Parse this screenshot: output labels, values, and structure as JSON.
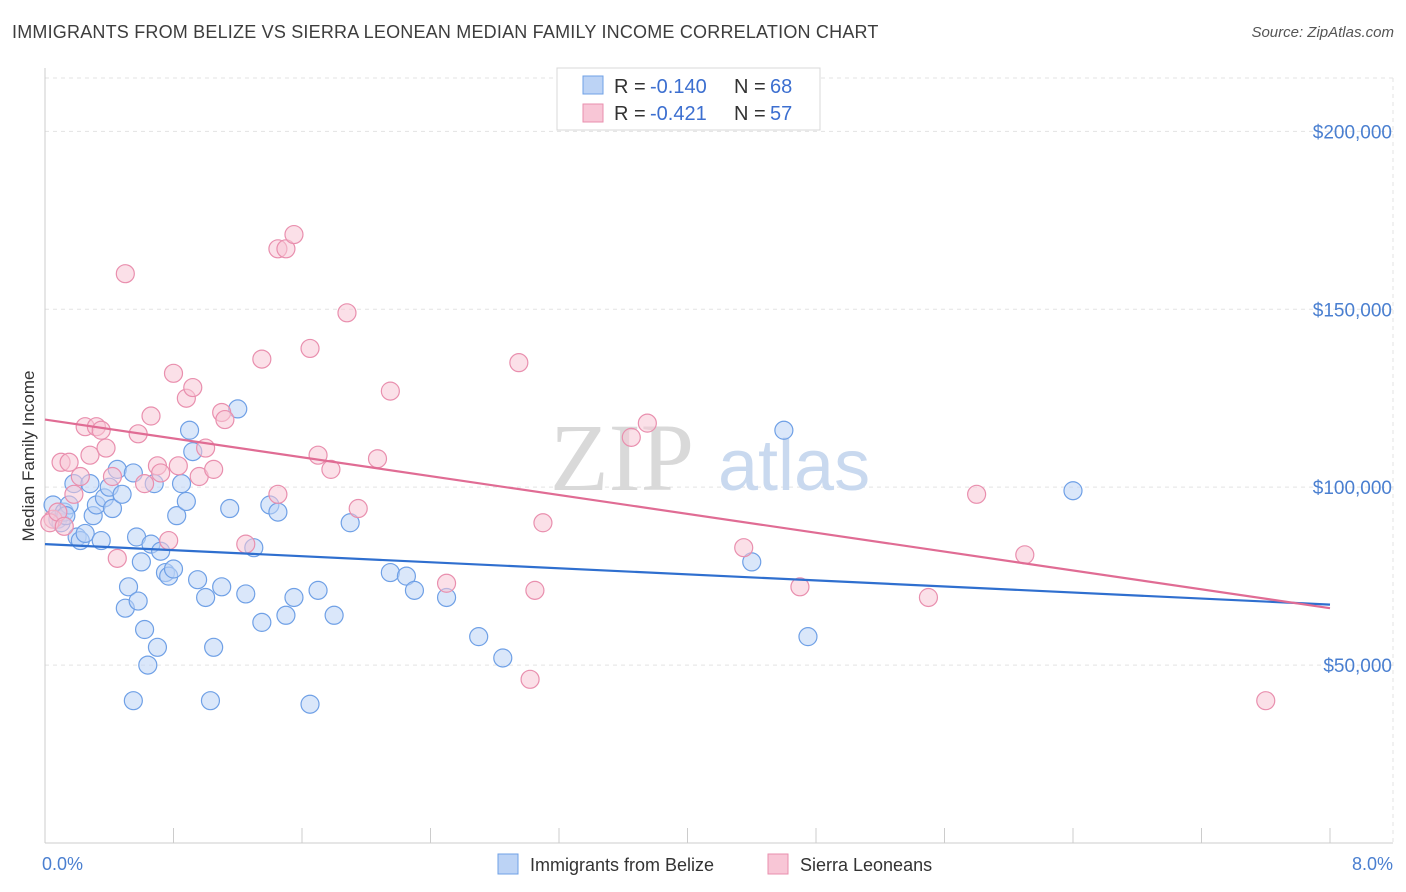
{
  "header": {
    "title": "IMMIGRANTS FROM BELIZE VS SIERRA LEONEAN MEDIAN FAMILY INCOME CORRELATION CHART",
    "source": "Source: ZipAtlas.com"
  },
  "watermark": {
    "zip": "ZIP",
    "atlas": "atlas"
  },
  "legend_top": {
    "r_label": "R =",
    "n_label": "N =",
    "rows": [
      {
        "r": "-0.140",
        "n": "68",
        "color": "#6fa0e6",
        "fill": "#bcd3f5"
      },
      {
        "r": "-0.421",
        "n": "57",
        "color": "#e98fae",
        "fill": "#f8c6d6"
      }
    ]
  },
  "legend_bottom": [
    {
      "label": "Immigrants from Belize",
      "color": "#6fa0e6",
      "fill": "#bcd3f5"
    },
    {
      "label": "Sierra Leoneans",
      "color": "#e98fae",
      "fill": "#f8c6d6"
    }
  ],
  "chart_data": {
    "type": "scatter",
    "title": "IMMIGRANTS FROM BELIZE VS SIERRA LEONEAN MEDIAN FAMILY INCOME CORRELATION CHART",
    "xlabel": "",
    "ylabel": "Median Family Income",
    "xlim": [
      0,
      8.0
    ],
    "ylim": [
      0,
      215000
    ],
    "x_tick_labels": [
      "0.0%",
      "8.0%"
    ],
    "y_ticks": [
      50000,
      100000,
      150000,
      200000
    ],
    "y_tick_labels": [
      "$50,000",
      "$100,000",
      "$150,000",
      "$200,000"
    ],
    "grid": true,
    "series": [
      {
        "name": "Immigrants from Belize",
        "color": "#6fa0e6",
        "fill": "#bcd3f5",
        "trend": {
          "x": [
            0,
            8.0
          ],
          "y": [
            84000,
            67000
          ],
          "color": "#2f6fcf"
        },
        "points": [
          [
            0.05,
            95000
          ],
          [
            0.08,
            91000
          ],
          [
            0.1,
            90000
          ],
          [
            0.12,
            93000
          ],
          [
            0.15,
            95000
          ],
          [
            0.18,
            101000
          ],
          [
            0.2,
            86000
          ],
          [
            0.22,
            85000
          ],
          [
            0.25,
            87000
          ],
          [
            0.28,
            101000
          ],
          [
            0.3,
            92000
          ],
          [
            0.32,
            95000
          ],
          [
            0.35,
            85000
          ],
          [
            0.37,
            97000
          ],
          [
            0.4,
            100000
          ],
          [
            0.42,
            94000
          ],
          [
            0.45,
            105000
          ],
          [
            0.48,
            98000
          ],
          [
            0.5,
            66000
          ],
          [
            0.52,
            72000
          ],
          [
            0.55,
            104000
          ],
          [
            0.57,
            86000
          ],
          [
            0.58,
            68000
          ],
          [
            0.6,
            79000
          ],
          [
            0.62,
            60000
          ],
          [
            0.64,
            50000
          ],
          [
            0.66,
            84000
          ],
          [
            0.68,
            101000
          ],
          [
            0.7,
            55000
          ],
          [
            0.72,
            82000
          ],
          [
            0.75,
            76000
          ],
          [
            0.77,
            75000
          ],
          [
            0.8,
            77000
          ],
          [
            0.82,
            92000
          ],
          [
            0.85,
            101000
          ],
          [
            0.88,
            96000
          ],
          [
            0.9,
            116000
          ],
          [
            0.92,
            110000
          ],
          [
            0.95,
            74000
          ],
          [
            1.0,
            69000
          ],
          [
            1.05,
            55000
          ],
          [
            1.1,
            72000
          ],
          [
            1.15,
            94000
          ],
          [
            1.2,
            122000
          ],
          [
            1.25,
            70000
          ],
          [
            1.3,
            83000
          ],
          [
            1.35,
            62000
          ],
          [
            1.4,
            95000
          ],
          [
            1.45,
            93000
          ],
          [
            1.5,
            64000
          ],
          [
            1.55,
            69000
          ],
          [
            1.7,
            71000
          ],
          [
            1.8,
            64000
          ],
          [
            1.9,
            90000
          ],
          [
            2.15,
            76000
          ],
          [
            2.25,
            75000
          ],
          [
            2.3,
            71000
          ],
          [
            2.5,
            69000
          ],
          [
            2.7,
            58000
          ],
          [
            2.85,
            52000
          ],
          [
            4.4,
            79000
          ],
          [
            4.6,
            116000
          ],
          [
            4.75,
            58000
          ],
          [
            6.4,
            99000
          ],
          [
            0.55,
            40000
          ],
          [
            1.03,
            40000
          ],
          [
            1.65,
            39000
          ],
          [
            0.13,
            92000
          ]
        ]
      },
      {
        "name": "Sierra Leoneans",
        "color": "#e98fae",
        "fill": "#f8c6d6",
        "trend": {
          "x": [
            0,
            8.0
          ],
          "y": [
            119000,
            66000
          ],
          "color": "#e06c94"
        },
        "points": [
          [
            0.05,
            91000
          ],
          [
            0.1,
            107000
          ],
          [
            0.15,
            107000
          ],
          [
            0.18,
            98000
          ],
          [
            0.22,
            103000
          ],
          [
            0.25,
            117000
          ],
          [
            0.28,
            109000
          ],
          [
            0.32,
            117000
          ],
          [
            0.35,
            116000
          ],
          [
            0.38,
            111000
          ],
          [
            0.42,
            103000
          ],
          [
            0.45,
            80000
          ],
          [
            0.5,
            160000
          ],
          [
            0.58,
            115000
          ],
          [
            0.62,
            101000
          ],
          [
            0.66,
            120000
          ],
          [
            0.7,
            106000
          ],
          [
            0.72,
            104000
          ],
          [
            0.77,
            85000
          ],
          [
            0.8,
            132000
          ],
          [
            0.83,
            106000
          ],
          [
            0.88,
            125000
          ],
          [
            0.92,
            128000
          ],
          [
            0.96,
            103000
          ],
          [
            1.0,
            111000
          ],
          [
            1.05,
            105000
          ],
          [
            1.1,
            121000
          ],
          [
            1.12,
            119000
          ],
          [
            1.25,
            84000
          ],
          [
            1.35,
            136000
          ],
          [
            1.45,
            167000
          ],
          [
            1.5,
            167000
          ],
          [
            1.55,
            171000
          ],
          [
            1.45,
            98000
          ],
          [
            1.65,
            139000
          ],
          [
            1.7,
            109000
          ],
          [
            1.78,
            105000
          ],
          [
            1.88,
            149000
          ],
          [
            1.95,
            94000
          ],
          [
            2.07,
            108000
          ],
          [
            2.15,
            127000
          ],
          [
            2.5,
            73000
          ],
          [
            2.95,
            135000
          ],
          [
            3.02,
            46000
          ],
          [
            3.05,
            71000
          ],
          [
            3.1,
            90000
          ],
          [
            3.65,
            114000
          ],
          [
            3.75,
            118000
          ],
          [
            4.35,
            83000
          ],
          [
            4.7,
            72000
          ],
          [
            5.5,
            69000
          ],
          [
            5.8,
            98000
          ],
          [
            6.1,
            81000
          ],
          [
            7.6,
            40000
          ],
          [
            0.03,
            90000
          ],
          [
            0.08,
            93000
          ],
          [
            0.12,
            89000
          ]
        ]
      }
    ]
  }
}
